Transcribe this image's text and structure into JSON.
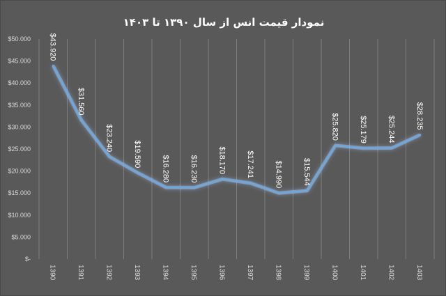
{
  "chart_data": {
    "type": "line",
    "title": "نمودار قیمت انس از سال ۱۳۹۰ تا ۱۴۰۳",
    "x": [
      "1390",
      "1391",
      "1392",
      "1393",
      "1394",
      "1395",
      "1396",
      "1397",
      "1398",
      "1399",
      "1400",
      "1401",
      "1402",
      "1403"
    ],
    "series": [
      {
        "values": [
          43920,
          31560,
          23240,
          19590,
          16280,
          16230,
          18170,
          17241,
          14990,
          15544,
          25820,
          25179,
          25244,
          28235
        ],
        "labels": [
          "$43.920",
          "$31.560",
          "$23.240",
          "$19.590",
          "$16.280",
          "$16.230",
          "$18.170",
          "$17.241",
          "$14.990",
          "$15.544",
          "$25.820",
          "$25.179",
          "$25.244",
          "$28.235"
        ]
      }
    ],
    "ylim": [
      0,
      50000
    ],
    "yticks": [
      0,
      5000,
      10000,
      15000,
      20000,
      25000,
      30000,
      35000,
      40000,
      45000,
      50000
    ],
    "ytick_labels": [
      "$-",
      "$5.000",
      "$10.000",
      "$15.000",
      "$20.000",
      "$25.000",
      "$30.000",
      "$35.000",
      "$40.000",
      "$45.000",
      "$50.000"
    ],
    "grid": "vertical",
    "legend": "none",
    "colors": {
      "background": "#595959",
      "line": "#6fa8dc",
      "glow": "#9fc5f8",
      "grid": "#7f7f7f",
      "text": "#ffffff",
      "axis_text": "#d9d9d9"
    }
  }
}
